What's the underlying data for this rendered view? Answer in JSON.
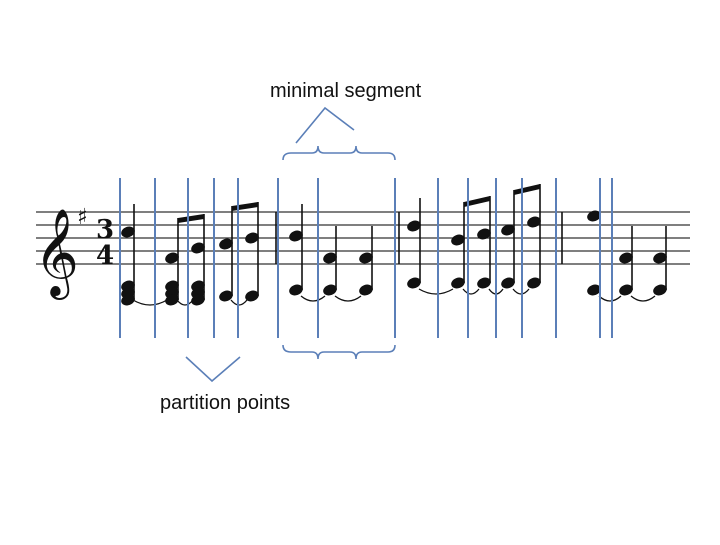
{
  "labels": {
    "minimal_segment": "minimal segment",
    "partition_points": "partition points"
  },
  "score": {
    "clef": "treble",
    "key_signature": "G major (1 sharp)",
    "time_signature": {
      "numerator": "3",
      "denominator": "4"
    },
    "measure_count": 4
  },
  "colors": {
    "partition_line": "#5b7fb8",
    "annotation": "#5b7fb8",
    "notation": "#111111",
    "staff": "#333333"
  }
}
